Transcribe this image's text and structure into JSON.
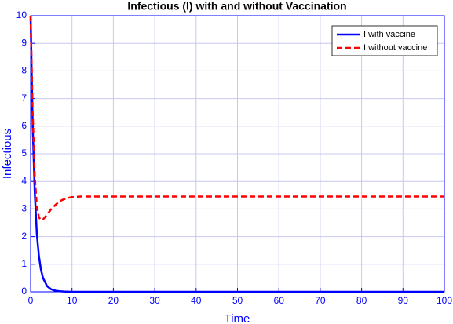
{
  "chart_data": {
    "type": "line",
    "title": "Infectious (I) with and without Vaccination",
    "xlabel": "Time",
    "ylabel": "Infectious",
    "x": [
      0,
      0.5,
      1,
      1.5,
      2,
      2.5,
      3,
      4,
      5,
      6,
      7,
      8,
      9,
      10,
      12,
      15,
      20,
      30,
      40,
      50,
      60,
      70,
      80,
      90,
      100
    ],
    "series": [
      {
        "name": "I with vaccine",
        "color": "#0000ff",
        "dash": "solid",
        "values": [
          10,
          6,
          3.6,
          2.1,
          1.3,
          0.8,
          0.5,
          0.2,
          0.09,
          0.04,
          0.02,
          0.01,
          0.005,
          0,
          0,
          0,
          0,
          0,
          0,
          0,
          0,
          0,
          0,
          0,
          0
        ]
      },
      {
        "name": "I without vaccine",
        "color": "#ff0000",
        "dash": "dashed",
        "values": [
          10,
          6.5,
          4.2,
          3.1,
          2.7,
          2.6,
          2.62,
          2.8,
          3.0,
          3.15,
          3.28,
          3.35,
          3.4,
          3.43,
          3.45,
          3.45,
          3.45,
          3.45,
          3.45,
          3.45,
          3.45,
          3.45,
          3.45,
          3.45,
          3.45
        ]
      }
    ],
    "xlim": [
      0,
      100
    ],
    "ylim": [
      0,
      10
    ],
    "xticks": [
      0,
      10,
      20,
      30,
      40,
      50,
      60,
      70,
      80,
      90,
      100
    ],
    "yticks": [
      0,
      1,
      2,
      3,
      4,
      5,
      6,
      7,
      8,
      9,
      10
    ],
    "grid": true,
    "legend": "upper right"
  }
}
